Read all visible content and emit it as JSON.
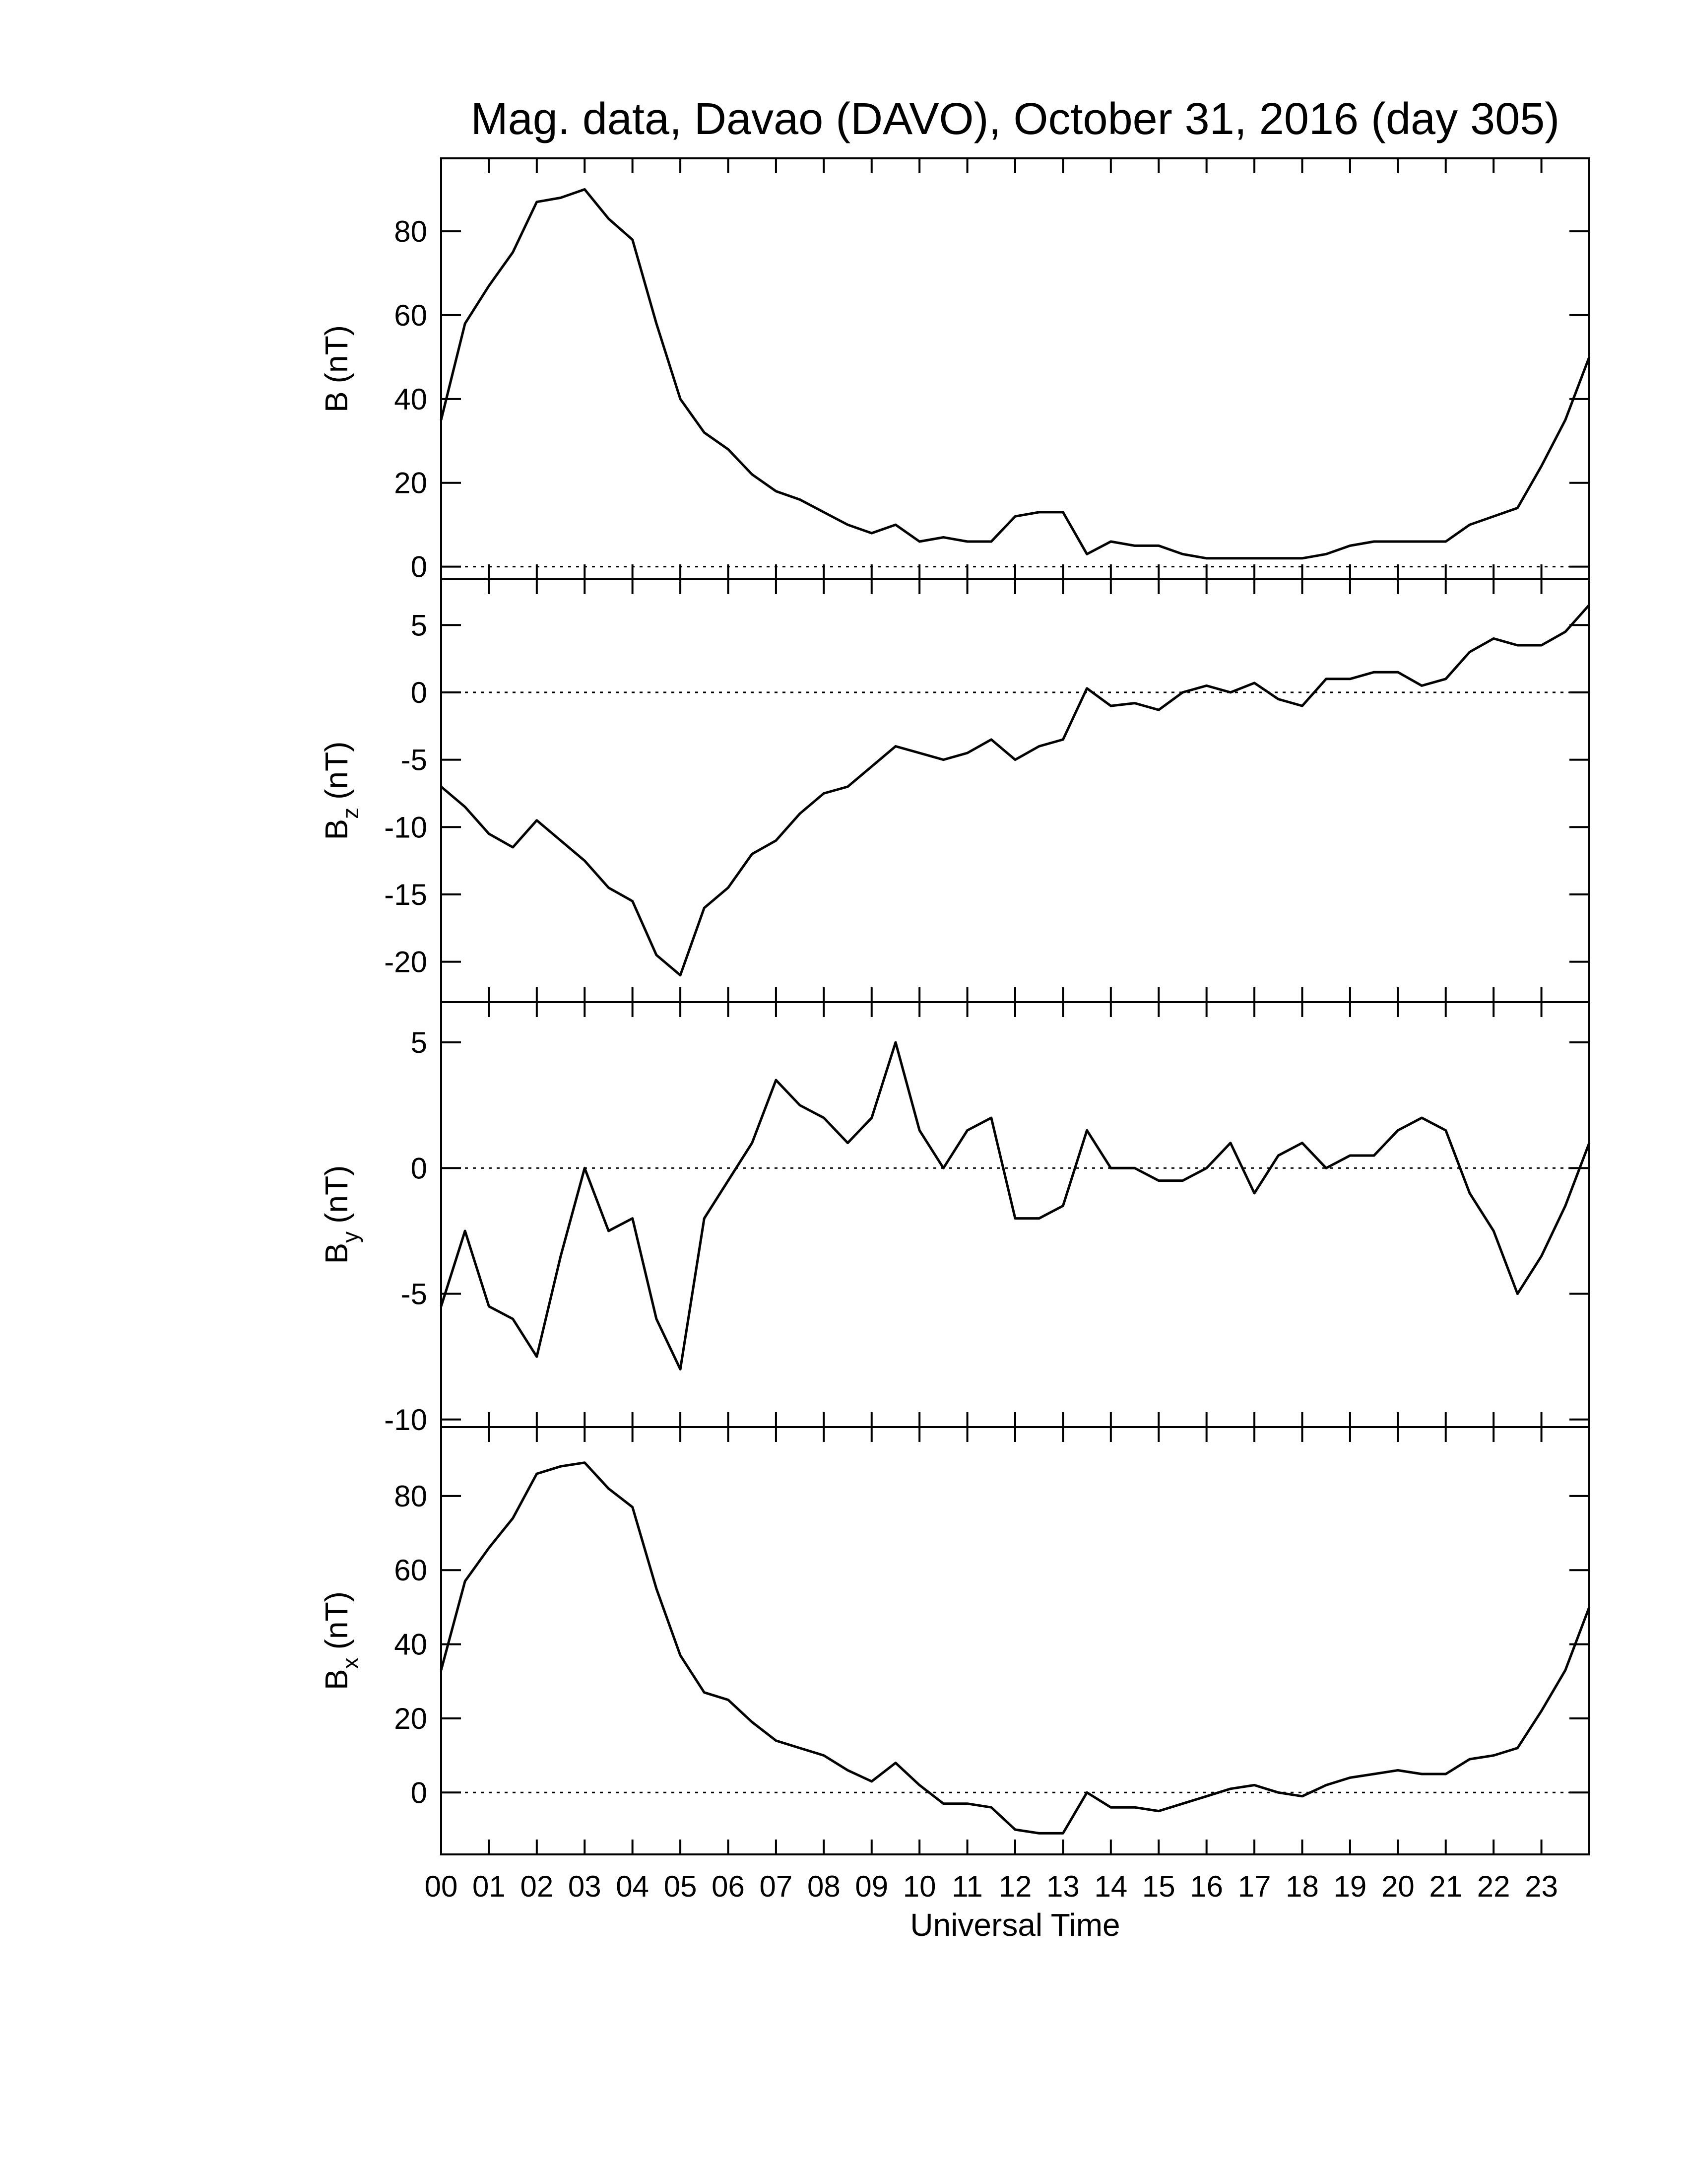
{
  "chart_data": [
    {
      "type": "line",
      "title": "Mag. data, Davao (DAVO), October 31, 2016 (day 305)",
      "ylabel": {
        "symbol": "B",
        "unit": "(nT)"
      },
      "color": "#000000",
      "zero_line": true,
      "xlim": [
        0,
        24
      ],
      "ylim": [
        -3,
        97.4
      ],
      "xticks": [
        0,
        1,
        2,
        3,
        4,
        5,
        6,
        7,
        8,
        9,
        10,
        11,
        12,
        13,
        14,
        15,
        16,
        17,
        18,
        19,
        20,
        21,
        22,
        23
      ],
      "yticks": [
        0,
        20,
        40,
        60,
        80
      ],
      "x": [
        0,
        0.5,
        1,
        1.5,
        2,
        2.5,
        3,
        3.5,
        4,
        4.5,
        5,
        5.5,
        6,
        6.5,
        7,
        7.5,
        8,
        8.5,
        9,
        9.5,
        10,
        10.5,
        11,
        11.5,
        12,
        12.5,
        13,
        13.5,
        14,
        14.5,
        15,
        15.5,
        16,
        16.5,
        17,
        17.5,
        18,
        18.5,
        19,
        19.5,
        20,
        20.5,
        21,
        21.5,
        22,
        22.5,
        23,
        23.5,
        24
      ],
      "values": [
        35,
        58,
        67,
        75,
        87,
        88,
        90,
        83,
        78,
        58,
        40,
        32,
        28,
        22,
        18,
        16,
        13,
        10,
        8,
        10,
        6,
        7,
        6,
        6,
        12,
        13,
        13,
        3,
        6,
        5,
        5,
        3,
        2,
        2,
        2,
        2,
        2,
        3,
        5,
        6,
        6,
        6,
        6,
        10,
        12,
        14,
        24,
        35,
        50
      ]
    },
    {
      "type": "line",
      "ylabel": {
        "symbol": "B",
        "subscript": "z",
        "unit": "(nT)"
      },
      "color": "#000000",
      "zero_line": true,
      "xlim": [
        0,
        24
      ],
      "ylim": [
        -23,
        8.4
      ],
      "xticks": [
        0,
        1,
        2,
        3,
        4,
        5,
        6,
        7,
        8,
        9,
        10,
        11,
        12,
        13,
        14,
        15,
        16,
        17,
        18,
        19,
        20,
        21,
        22,
        23
      ],
      "yticks": [
        -20,
        -15,
        -10,
        -5,
        0,
        5
      ],
      "x": [
        0,
        0.5,
        1,
        1.5,
        2,
        2.5,
        3,
        3.5,
        4,
        4.5,
        5,
        5.5,
        6,
        6.5,
        7,
        7.5,
        8,
        8.5,
        9,
        9.5,
        10,
        10.5,
        11,
        11.5,
        12,
        12.5,
        13,
        13.5,
        14,
        14.5,
        15,
        15.5,
        16,
        16.5,
        17,
        17.5,
        18,
        18.5,
        19,
        19.5,
        20,
        20.5,
        21,
        21.5,
        22,
        22.5,
        23,
        23.5,
        24
      ],
      "values": [
        -7,
        -8.5,
        -10.5,
        -11.5,
        -9.5,
        -11,
        -12.5,
        -14.5,
        -15.5,
        -19.5,
        -21,
        -16,
        -14.5,
        -12,
        -11,
        -9,
        -7.5,
        -7,
        -5.5,
        -4,
        -4.5,
        -5,
        -4.5,
        -3.5,
        -5,
        -4,
        -3.5,
        0.3,
        -1,
        -0.8,
        -1.3,
        0,
        0.5,
        0,
        0.7,
        -0.5,
        -1,
        1,
        1,
        1.5,
        1.5,
        0.5,
        1,
        3,
        4,
        3.5,
        3.5,
        4.5,
        6.5
      ]
    },
    {
      "type": "line",
      "ylabel": {
        "symbol": "B",
        "subscript": "y",
        "unit": "(nT)"
      },
      "color": "#000000",
      "zero_line": true,
      "xlim": [
        0,
        24
      ],
      "ylim": [
        -10.3,
        6.6
      ],
      "xticks": [
        0,
        1,
        2,
        3,
        4,
        5,
        6,
        7,
        8,
        9,
        10,
        11,
        12,
        13,
        14,
        15,
        16,
        17,
        18,
        19,
        20,
        21,
        22,
        23
      ],
      "yticks": [
        -10,
        -5,
        0,
        5
      ],
      "x": [
        0,
        0.5,
        1,
        1.5,
        2,
        2.5,
        3,
        3.5,
        4,
        4.5,
        5,
        5.5,
        6,
        6.5,
        7,
        7.5,
        8,
        8.5,
        9,
        9.5,
        10,
        10.5,
        11,
        11.5,
        12,
        12.5,
        13,
        13.5,
        14,
        14.5,
        15,
        15.5,
        16,
        16.5,
        17,
        17.5,
        18,
        18.5,
        19,
        19.5,
        20,
        20.5,
        21,
        21.5,
        22,
        22.5,
        23,
        23.5,
        24
      ],
      "values": [
        -5.5,
        -2.5,
        -5.5,
        -6,
        -7.5,
        -3.5,
        0,
        -2.5,
        -2,
        -6,
        -8,
        -2,
        -0.5,
        1,
        3.5,
        2.5,
        2,
        1,
        2,
        5,
        1.5,
        0,
        1.5,
        2,
        -2,
        -2,
        -1.5,
        1.5,
        0,
        0,
        -0.5,
        -0.5,
        0,
        1,
        -1,
        0.5,
        1,
        0,
        0.5,
        0.5,
        1.5,
        2,
        1.5,
        -1,
        -2.5,
        -5,
        -3.5,
        -1.5,
        1
      ]
    },
    {
      "type": "line",
      "xlabel": "Universal Time",
      "ylabel": {
        "symbol": "B",
        "subscript": "x",
        "unit": "(nT)"
      },
      "color": "#000000",
      "zero_line": true,
      "xlim": [
        0,
        24
      ],
      "ylim": [
        -16.7,
        98.6
      ],
      "xticks": [
        {
          "value": 0,
          "label": "00"
        },
        {
          "value": 1,
          "label": "01"
        },
        {
          "value": 2,
          "label": "02"
        },
        {
          "value": 3,
          "label": "03"
        },
        {
          "value": 4,
          "label": "04"
        },
        {
          "value": 5,
          "label": "05"
        },
        {
          "value": 6,
          "label": "06"
        },
        {
          "value": 7,
          "label": "07"
        },
        {
          "value": 8,
          "label": "08"
        },
        {
          "value": 9,
          "label": "09"
        },
        10,
        11,
        12,
        13,
        14,
        15,
        16,
        17,
        18,
        19,
        20,
        21,
        22,
        23
      ],
      "yticks": [
        0,
        20,
        40,
        60,
        80
      ],
      "x": [
        0,
        0.5,
        1,
        1.5,
        2,
        2.5,
        3,
        3.5,
        4,
        4.5,
        5,
        5.5,
        6,
        6.5,
        7,
        7.5,
        8,
        8.5,
        9,
        9.5,
        10,
        10.5,
        11,
        11.5,
        12,
        12.5,
        13,
        13.5,
        14,
        14.5,
        15,
        15.5,
        16,
        16.5,
        17,
        17.5,
        18,
        18.5,
        19,
        19.5,
        20,
        20.5,
        21,
        21.5,
        22,
        22.5,
        23,
        23.5,
        24
      ],
      "values": [
        33,
        57,
        66,
        74,
        86,
        88,
        89,
        82,
        77,
        55,
        37,
        27,
        25,
        19,
        14,
        12,
        10,
        6,
        3,
        8,
        2,
        -3,
        -3,
        -4,
        -10,
        -11,
        -11,
        0,
        -4,
        -4,
        -5,
        -3,
        -1,
        1,
        2,
        0,
        -1,
        2,
        4,
        5,
        6,
        5,
        5,
        9,
        10,
        12,
        22,
        33,
        50
      ]
    }
  ]
}
